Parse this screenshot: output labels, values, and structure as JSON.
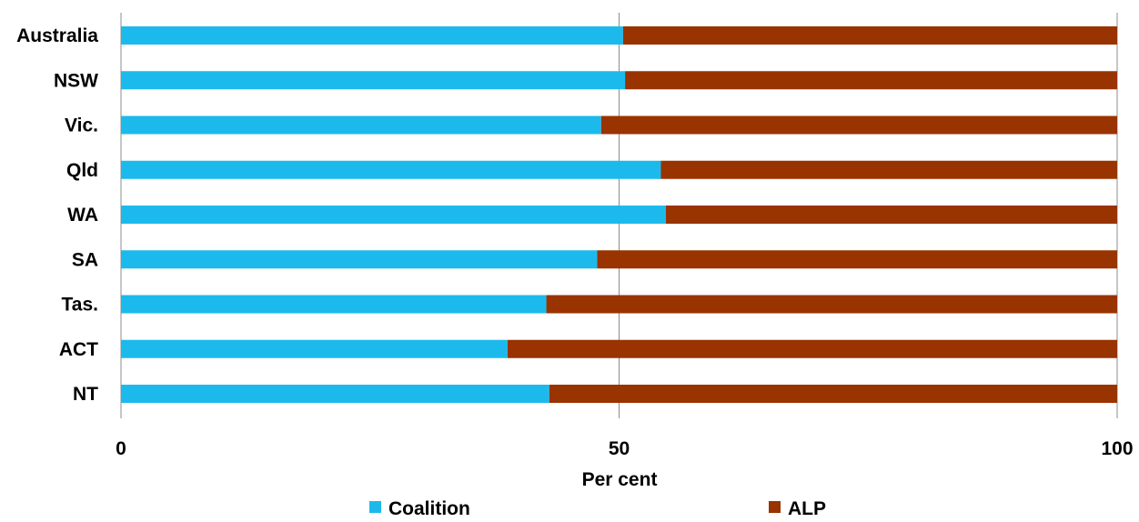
{
  "chart_data": {
    "type": "bar",
    "orientation": "horizontal",
    "stacked": true,
    "categories": [
      "Australia",
      "NSW",
      "Vic.",
      "Qld",
      "WA",
      "SA",
      "Tas.",
      "ACT",
      "NT"
    ],
    "series": [
      {
        "name": "Coalition",
        "color": "#1CBAEC",
        "values": [
          50.4,
          50.6,
          48.2,
          54.2,
          54.7,
          47.8,
          42.7,
          38.8,
          43.0
        ]
      },
      {
        "name": "ALP",
        "color": "#993300",
        "values": [
          49.6,
          49.4,
          51.8,
          45.8,
          45.3,
          52.2,
          57.3,
          61.2,
          57.0
        ]
      }
    ],
    "xlabel": "Per cent",
    "xlim": [
      0,
      100
    ],
    "xticks": [
      "0",
      "50",
      "100"
    ],
    "grid": true,
    "legend_position": "bottom"
  }
}
